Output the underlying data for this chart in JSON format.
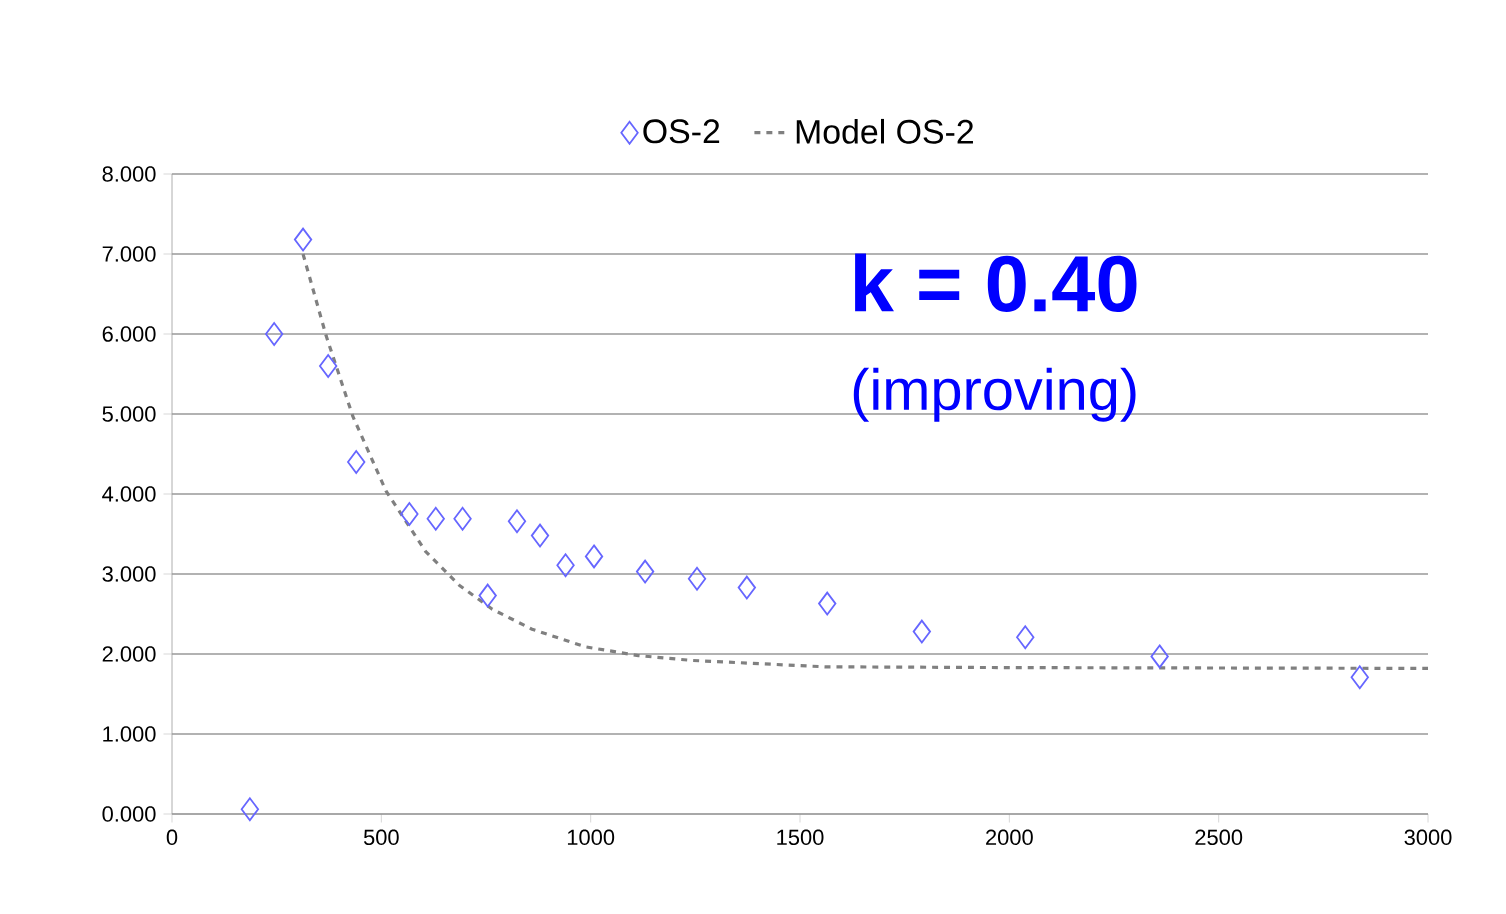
{
  "chart_data": {
    "type": "scatter",
    "series": [
      {
        "name": "OS-2",
        "color": "#6666ff",
        "marker": "diamond",
        "x": [
          186,
          244,
          313,
          373,
          440,
          567,
          630,
          694,
          754,
          824,
          879,
          940,
          1008,
          1130,
          1254,
          1373,
          1565,
          1791,
          2038,
          2359,
          2837
        ],
        "values": [
          0.06,
          6.0,
          7.18,
          5.6,
          4.4,
          3.75,
          3.69,
          3.69,
          2.73,
          3.66,
          3.48,
          3.11,
          3.22,
          3.03,
          2.94,
          2.83,
          2.63,
          2.28,
          2.21,
          1.97,
          1.71
        ]
      },
      {
        "name": "Model OS-2",
        "type": "line",
        "color": "#808080",
        "line_style": "dashed",
        "marker": "none",
        "x": [
          313,
          368,
          432,
          511,
          606,
          686,
          765,
          860,
          987,
          1114,
          1241,
          1559,
          2000,
          3000
        ],
        "values": [
          7.0,
          5.98,
          4.97,
          4.04,
          3.28,
          2.86,
          2.56,
          2.31,
          2.09,
          1.98,
          1.92,
          1.84,
          1.83,
          1.82
        ]
      }
    ],
    "xlim": [
      0,
      3000
    ],
    "xticks": [
      0,
      500,
      1000,
      1500,
      2000,
      2500,
      3000
    ],
    "ylim": [
      0,
      8
    ],
    "yticks": [
      {
        "value": 0,
        "label": "0.000"
      },
      {
        "value": 1,
        "label": "1.000"
      },
      {
        "value": 2,
        "label": "2.000"
      },
      {
        "value": 3,
        "label": "3.000"
      },
      {
        "value": 4,
        "label": "4.000"
      },
      {
        "value": 5,
        "label": "5.000"
      },
      {
        "value": 6,
        "label": "6.000"
      },
      {
        "value": 7,
        "label": "7.000"
      },
      {
        "value": 8,
        "label": "8.000"
      }
    ],
    "grid": "y",
    "legend": "top",
    "annotations": [
      "**k = 0.40**",
      "(improving)"
    ]
  }
}
